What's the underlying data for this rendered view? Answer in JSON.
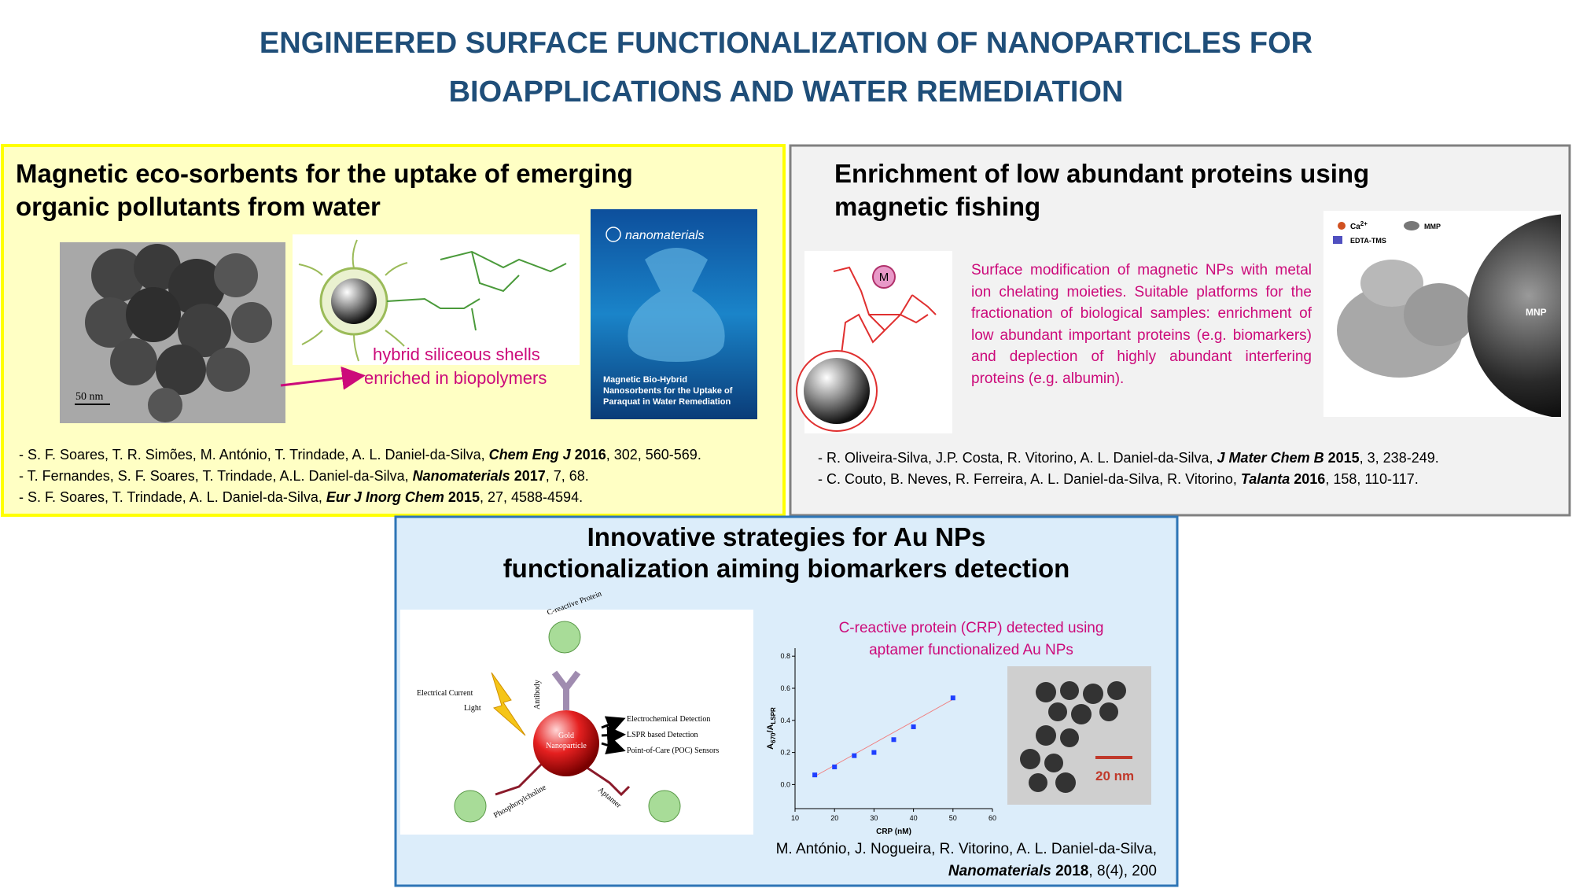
{
  "title": {
    "lines": [
      "ENGINEERED SURFACE FUNCTIONALIZATION OF NANOPARTICLES FOR",
      "BIOAPPLICATIONS AND WATER REMEDIATION"
    ]
  },
  "panels": [
    {
      "heading": [
        "Magnetic eco-sorbents for the uptake of emerging",
        "organic pollutants from water"
      ],
      "figure": {
        "scale_bar": "50 nm",
        "annotation": [
          "hybrid siliceous shells",
          "enriched in biopolymers"
        ],
        "cover_journal": "nanomaterials",
        "cover_title": [
          "Magnetic Bio-Hybrid",
          "Nanosorbents for the Uptake of",
          "Paraquat in Water Remediation"
        ]
      },
      "references": [
        {
          "authors": "- S. F. Soares, T. R. Simões, M. António, T. Trindade, A. L. Daniel-da-Silva,",
          "journal": "Chem Eng J",
          "year": "2016",
          "details": ", 302, 560-569."
        },
        {
          "authors": "- T. Fernandes, S. F. Soares, T. Trindade, A.L. Daniel-da-Silva,",
          "journal": "Nanomaterials",
          "year": "2017",
          "details": ", 7, 68."
        },
        {
          "authors": "- S. F. Soares, T. Trindade, A. L. Daniel-da-Silva,",
          "journal": "Eur J Inorg Chem",
          "year": "2015",
          "details": ", 27, 4588-4594."
        }
      ]
    },
    {
      "heading": [
        "Enrichment of low abundant proteins using",
        "magnetic fishing"
      ],
      "figure": {
        "metal": "M",
        "ion": [
          "Ca",
          "2+"
        ],
        "ligand": "EDTA-TMS",
        "protein": "MMP",
        "particle": "MNP"
      },
      "description": "Surface modification of magnetic NPs with metal ion chelating moieties. Suitable platforms for the fractionation of biological samples: enrichment of low abundant important proteins (e.g. biomarkers) and deplection of highly abundant interfering proteins (e.g. albumin).",
      "references": [
        {
          "authors": "- R. Oliveira-Silva, J.P. Costa, R. Vitorino, A. L. Daniel-da-Silva,",
          "journal": "J Mater Chem B",
          "year": "2015",
          "details": ", 3, 238-249."
        },
        {
          "authors": "- C. Couto, B. Neves, R. Ferreira, A. L. Daniel-da-Silva, R. Vitorino,",
          "journal": "Talanta",
          "year": "2016",
          "details": ", 158, 110-117."
        }
      ]
    },
    {
      "heading": [
        "Innovative strategies for Au NPs",
        "functionalization aiming biomarkers detection"
      ],
      "figure": {
        "protein": "C-reactive Protein",
        "antibody": "Antibody",
        "current": "Electrical Current",
        "light": "Light",
        "particle": [
          "Gold",
          "Nanoparticle"
        ],
        "detections": [
          "Electrochemical Detection",
          "LSPR based Detection",
          "Point-of-Care (POC) Sensors"
        ],
        "phosphorylcholine": "Phosphorylcholine",
        "aptamer": "Aptamer"
      },
      "plot": {
        "type": "scatter",
        "title": [
          "C-reactive protein (CRP) detected using",
          "aptamer functionalized Au NPs"
        ],
        "x_label": "CRP (nM)",
        "y_label": [
          "A",
          "670",
          "/A",
          "LSPR"
        ],
        "x": [
          15,
          20,
          25,
          30,
          35,
          40,
          50
        ],
        "values": [
          0.06,
          0.11,
          0.18,
          0.2,
          0.28,
          0.36,
          0.54
        ],
        "color": "#1f3fff",
        "xlim": [
          10,
          60
        ],
        "ylim": [
          -0.15,
          0.85
        ],
        "xticks": [
          10,
          20,
          30,
          40,
          50,
          60
        ],
        "yticks": [
          {
            "value": 0,
            "label": "0.0"
          },
          {
            "value": 0.2,
            "label": "0.2"
          },
          {
            "value": 0.4,
            "label": "0.4"
          },
          {
            "value": 0.6,
            "label": "0.6"
          },
          {
            "value": 0.8,
            "label": "0.8"
          }
        ]
      },
      "tem_scale_bar": "20 nm",
      "reference": {
        "authors": "M. António, J. Nogueira, R. Vitorino, A. L. Daniel-da-Silva,",
        "journal": "Nanomaterials",
        "year": "2018",
        "details": ", 8(4), 200"
      }
    }
  ]
}
